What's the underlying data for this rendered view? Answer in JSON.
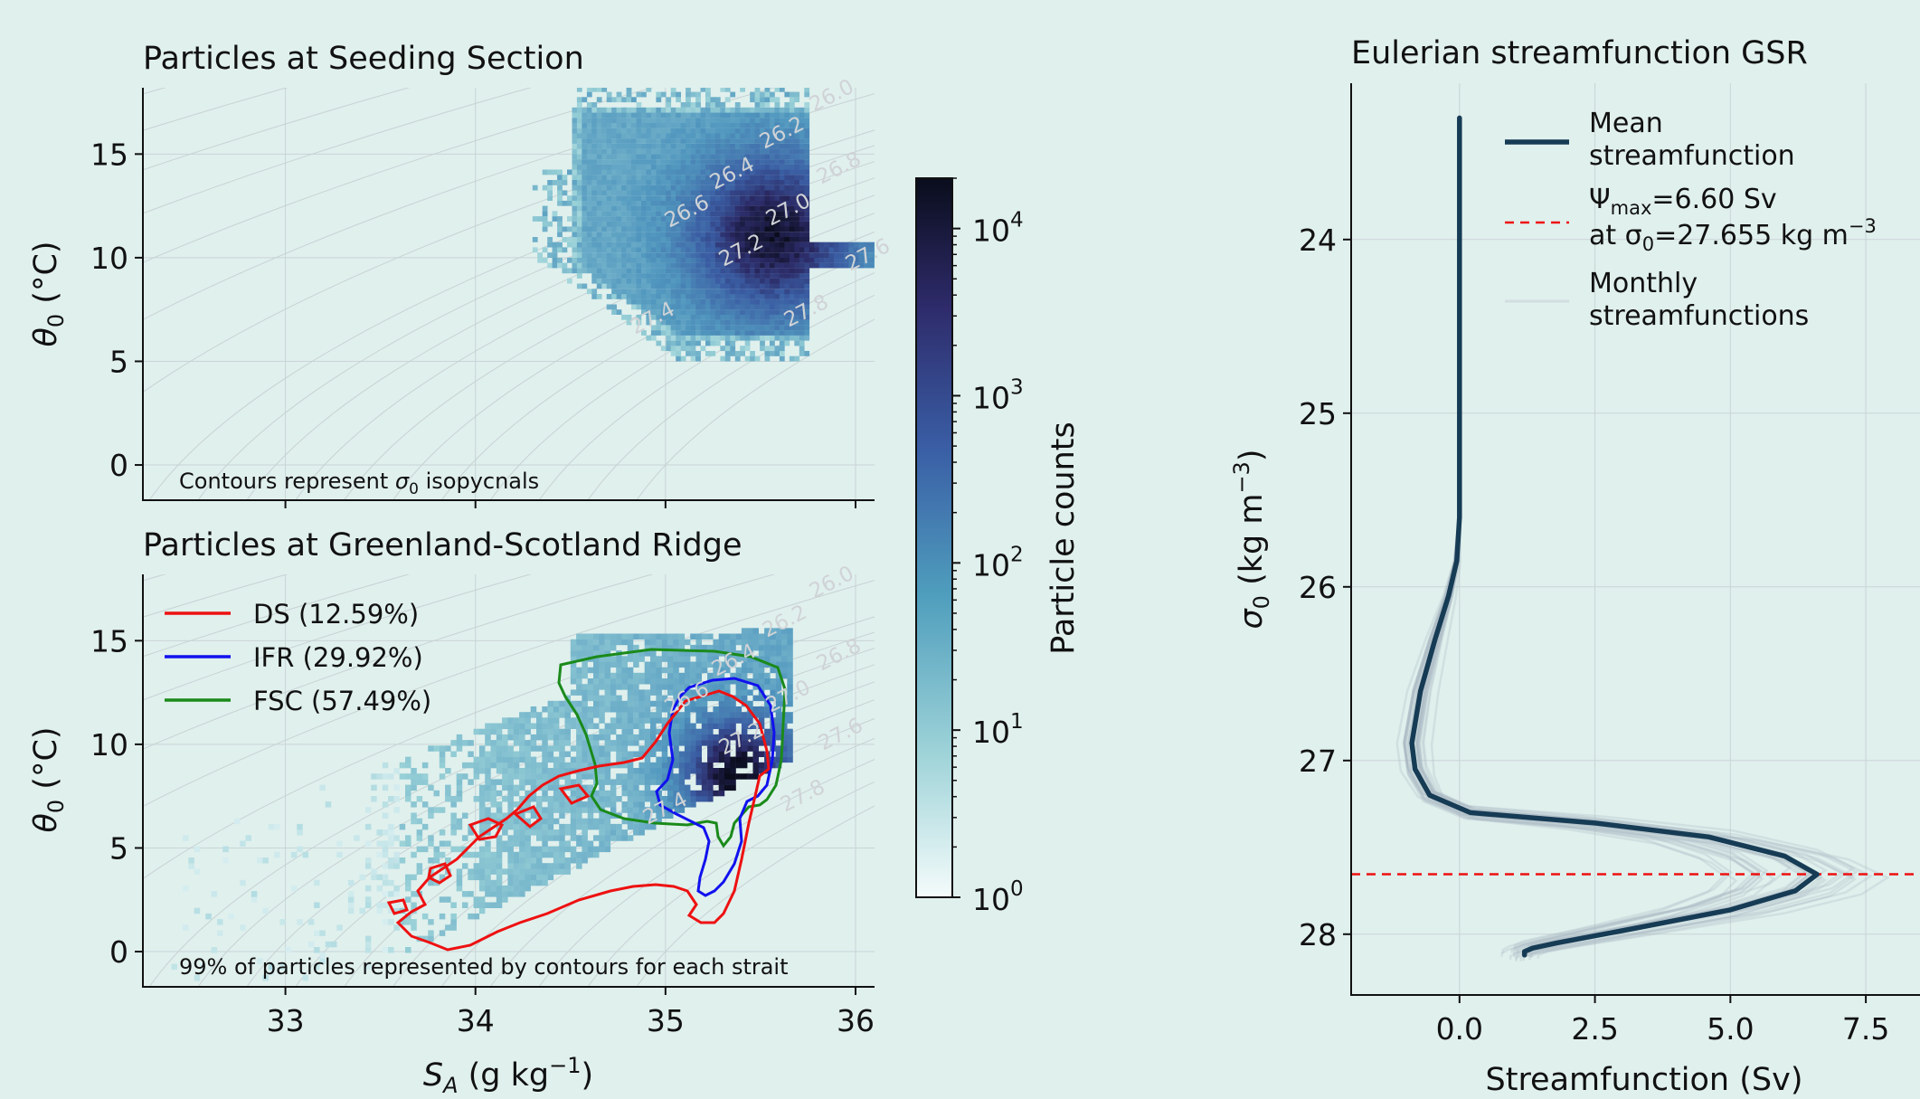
{
  "chart_data": [
    {
      "type": "heatmap",
      "title": "Particles at Seeding Section",
      "xlabel": "",
      "ylabel": "θ0 (°C)",
      "xlim": [
        32.25,
        36.1
      ],
      "ylim": [
        -1.7,
        18.2
      ],
      "yticks": [
        "0",
        "5",
        "10",
        "15"
      ],
      "grid": true,
      "annotation": "Contours represent σ0 isopycnals",
      "isopycnal_labels": [
        "26.0",
        "26.2",
        "26.4",
        "26.6",
        "26.8",
        "27.0",
        "27.2",
        "27.4",
        "27.6",
        "27.8"
      ],
      "description_data": {
        "salinity_range": [
          34.5,
          36.1
        ],
        "temperature_range": [
          5,
          18
        ],
        "peak": {
          "x": 35.55,
          "y": 11
        }
      }
    },
    {
      "type": "heatmap",
      "title": "Particles at Greenland-Scotland Ridge",
      "xlabel": "SA (g kg−1)",
      "ylabel": "θ0 (°C)",
      "xlim": [
        32.25,
        36.1
      ],
      "ylim": [
        -1.7,
        18.2
      ],
      "xticks": [
        "33",
        "34",
        "35",
        "36"
      ],
      "yticks": [
        "0",
        "5",
        "10",
        "15"
      ],
      "grid": true,
      "annotation": "99% of particles represented by contours for each strait",
      "legend": {
        "placement": "top-left",
        "entries": [
          {
            "name": "DS (12.59%)",
            "color": "#ee1111"
          },
          {
            "name": "IFR (29.92%)",
            "color": "#1111ee"
          },
          {
            "name": "FSC (57.49%)",
            "color": "#1a8a1a"
          }
        ]
      },
      "isopycnal_labels": [
        "26.0",
        "26.2",
        "26.4",
        "26.6",
        "26.8",
        "27.0",
        "27.2",
        "27.4",
        "27.6",
        "27.8"
      ],
      "colorbar": {
        "label": "Particle counts",
        "scale": "log",
        "range": [
          1,
          20000
        ],
        "ticks": [
          "10",
          "10",
          "10",
          "10",
          "10"
        ],
        "exponents": [
          "0",
          "1",
          "2",
          "3",
          "4"
        ]
      }
    },
    {
      "type": "line",
      "title": "Eulerian streamfunction GSR",
      "xlabel": "Streamfunction (Sv)",
      "ylabel": "σ0 (kg m−3)",
      "xlim": [
        -2.0,
        8.5
      ],
      "ylim": [
        28.35,
        23.1
      ],
      "xticks": [
        "0.0",
        "2.5",
        "5.0",
        "7.5"
      ],
      "yticks": [
        "24",
        "25",
        "26",
        "27",
        "28"
      ],
      "grid": true,
      "legend_entries": {
        "mean_a": "Mean",
        "mean_b": "streamfunction",
        "psi_a": "Ψ",
        "psi_sub": "max",
        "psi_b": "=6.60 Sv",
        "at_a": "at σ",
        "at_sub": "0",
        "at_b": "=27.655 kg m",
        "at_sup": "−3",
        "monthly_a": "Monthly",
        "monthly_b": "streamfunctions"
      },
      "psi_max": {
        "value": 6.6,
        "sigma0": 27.655
      },
      "series": [
        {
          "name": "Mean streamfunction",
          "color": "#163b55",
          "points": [
            [
              0.0,
              23.3
            ],
            [
              0.0,
              24.0
            ],
            [
              0.0,
              25.0
            ],
            [
              0.0,
              25.6
            ],
            [
              -0.05,
              25.85
            ],
            [
              -0.2,
              26.05
            ],
            [
              -0.45,
              26.3
            ],
            [
              -0.72,
              26.6
            ],
            [
              -0.88,
              26.9
            ],
            [
              -0.82,
              27.05
            ],
            [
              -0.55,
              27.2
            ],
            [
              0.2,
              27.3
            ],
            [
              2.5,
              27.36
            ],
            [
              4.6,
              27.44
            ],
            [
              6.0,
              27.55
            ],
            [
              6.6,
              27.655
            ],
            [
              6.2,
              27.75
            ],
            [
              5.0,
              27.86
            ],
            [
              3.0,
              27.98
            ],
            [
              1.8,
              28.05
            ],
            [
              1.35,
              28.08
            ],
            [
              1.2,
              28.1
            ],
            [
              1.2,
              28.12
            ]
          ]
        }
      ]
    }
  ]
}
